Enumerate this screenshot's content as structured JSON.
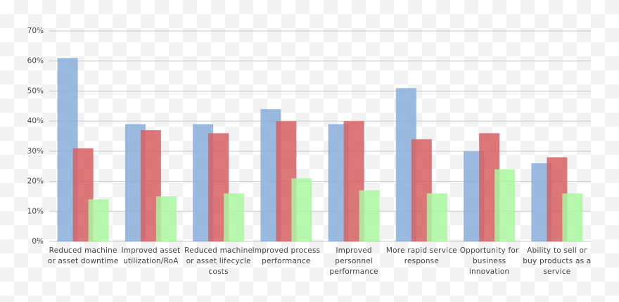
{
  "chart_data": {
    "type": "bar",
    "categories": [
      "Reduced machine or asset downtime",
      "Improved asset utilization/RoA",
      "Reduced machine or asset lifecycle costs",
      "Improved process performance",
      "Improved personnel performance",
      "More rapid service response",
      "Opportunity for business innovation",
      "Ability to sell or buy products as a service"
    ],
    "series": [
      {
        "color": "#8aaedb",
        "values": [
          61,
          39,
          39,
          44,
          39,
          51,
          30,
          26
        ]
      },
      {
        "color": "#d65f63",
        "values": [
          31,
          37,
          36,
          40,
          40,
          34,
          36,
          28
        ]
      },
      {
        "color": "#a9f7a0",
        "values": [
          14,
          15,
          16,
          21,
          17,
          16,
          24,
          16
        ]
      }
    ],
    "ylim": [
      0,
      70
    ],
    "yticks": [
      {
        "value": 0,
        "label": "0%"
      },
      {
        "value": 10,
        "label": "10%"
      },
      {
        "value": 20,
        "label": "20%"
      },
      {
        "value": 30,
        "label": "30%"
      },
      {
        "value": 40,
        "label": "40%"
      },
      {
        "value": 50,
        "label": "50%"
      },
      {
        "value": 60,
        "label": "60%"
      },
      {
        "value": 70,
        "label": "70%"
      }
    ],
    "grid": true
  }
}
